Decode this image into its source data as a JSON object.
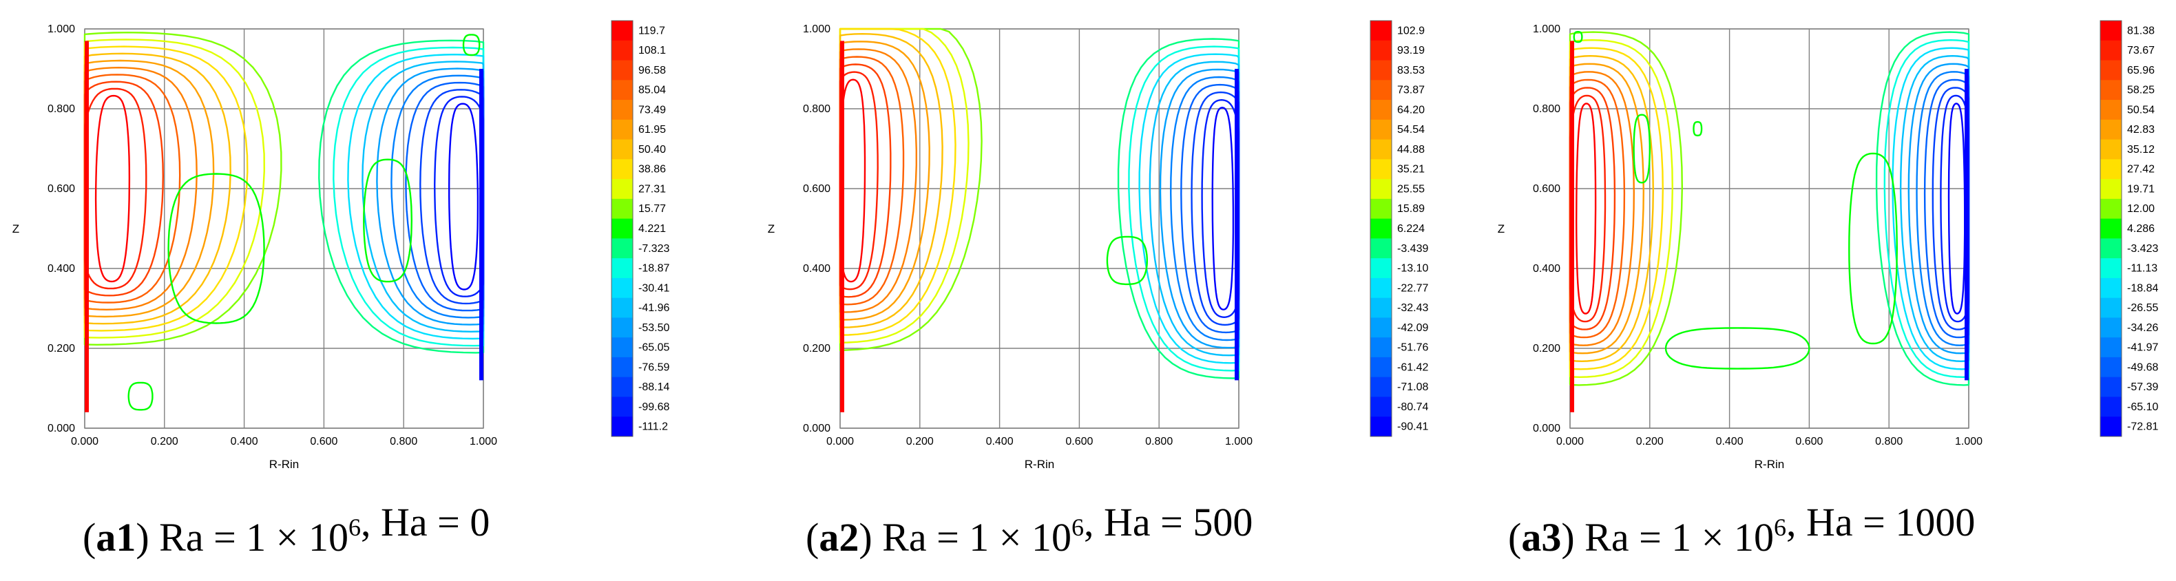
{
  "chart_data": [
    {
      "type": "contour",
      "panel": "a1",
      "caption": {
        "id": "a1",
        "ra_mantissa": "1",
        "ra_exponent": "6",
        "ha": "0",
        "ra_label": "Ra",
        "ha_label": "Ha",
        "times": "×"
      },
      "xlabel": "R-Rin",
      "ylabel": "Z",
      "xticks": [
        "0.000",
        "0.200",
        "0.400",
        "0.600",
        "0.800",
        "1.000"
      ],
      "yticks": [
        "0.000",
        "0.200",
        "0.400",
        "0.600",
        "0.800",
        "1.000"
      ],
      "xlim": [
        0,
        1
      ],
      "ylim": [
        0,
        1
      ],
      "colorbar_levels": [
        "119.7",
        "108.1",
        "96.58",
        "85.04",
        "73.49",
        "61.95",
        "50.40",
        "38.86",
        "27.31",
        "15.77",
        "4.221",
        "-7.323",
        "-18.87",
        "-30.41",
        "-41.96",
        "-53.50",
        "-65.05",
        "-76.59",
        "-88.14",
        "-99.68",
        "-111.2"
      ],
      "vortices": [
        {
          "sign": "positive",
          "center": [
            0.03,
            0.6
          ]
        },
        {
          "sign": "negative",
          "center": [
            0.97,
            0.58
          ]
        }
      ]
    },
    {
      "type": "contour",
      "panel": "a2",
      "caption": {
        "id": "a2",
        "ra_mantissa": "1",
        "ra_exponent": "6",
        "ha": "500",
        "ra_label": "Ra",
        "ha_label": "Ha",
        "times": "×"
      },
      "xlabel": "R-Rin",
      "ylabel": "Z",
      "xticks": [
        "0.000",
        "0.200",
        "0.400",
        "0.600",
        "0.800",
        "1.000"
      ],
      "yticks": [
        "0.000",
        "0.200",
        "0.400",
        "0.600",
        "0.800",
        "1.000"
      ],
      "xlim": [
        0,
        1
      ],
      "ylim": [
        0,
        1
      ],
      "colorbar_levels": [
        "102.9",
        "93.19",
        "83.53",
        "73.87",
        "64.20",
        "54.54",
        "44.88",
        "35.21",
        "25.55",
        "15.89",
        "6.224",
        "-3.439",
        "-13.10",
        "-22.77",
        "-32.43",
        "-42.09",
        "-51.76",
        "-61.42",
        "-71.08",
        "-80.74",
        "-90.41"
      ],
      "vortices": [
        {
          "sign": "positive",
          "center": [
            0.02,
            0.62
          ]
        },
        {
          "sign": "negative",
          "center": [
            0.97,
            0.55
          ]
        }
      ]
    },
    {
      "type": "contour",
      "panel": "a3",
      "caption": {
        "id": "a3",
        "ra_mantissa": "1",
        "ra_exponent": "6",
        "ha": "1000",
        "ra_label": "Ra",
        "ha_label": "Ha",
        "times": "×"
      },
      "xlabel": "R-Rin",
      "ylabel": "Z",
      "xticks": [
        "0.000",
        "0.200",
        "0.400",
        "0.600",
        "0.800",
        "1.000"
      ],
      "yticks": [
        "0.000",
        "0.200",
        "0.400",
        "0.600",
        "0.800",
        "1.000"
      ],
      "xlim": [
        0,
        1
      ],
      "ylim": [
        0,
        1
      ],
      "colorbar_levels": [
        "81.38",
        "73.67",
        "65.96",
        "58.25",
        "50.54",
        "42.83",
        "35.12",
        "27.42",
        "19.71",
        "12.00",
        "4.286",
        "-3.423",
        "-11.13",
        "-18.84",
        "-26.55",
        "-34.26",
        "-41.97",
        "-49.68",
        "-57.39",
        "-65.10",
        "-72.81"
      ],
      "vortices": [
        {
          "sign": "positive",
          "center": [
            0.02,
            0.55
          ]
        },
        {
          "sign": "negative",
          "center": [
            0.97,
            0.55
          ]
        }
      ]
    }
  ],
  "colors": [
    "#ff0000",
    "#ff2000",
    "#ff4000",
    "#ff6000",
    "#ff8000",
    "#ffa000",
    "#ffc000",
    "#ffe000",
    "#e0ff00",
    "#80ff00",
    "#00ff00",
    "#00ff80",
    "#00ffe0",
    "#00e0ff",
    "#00c0ff",
    "#00a0ff",
    "#0080ff",
    "#0060ff",
    "#0040ff",
    "#0020ff",
    "#0000ff"
  ]
}
